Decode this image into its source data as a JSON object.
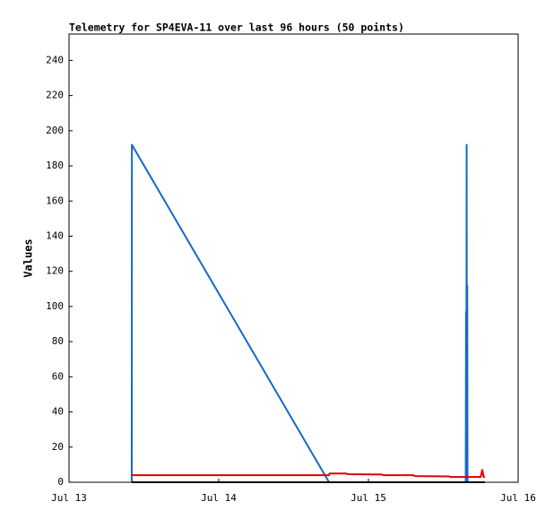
{
  "chart_data": {
    "type": "line",
    "title": "Telemetry for SP4EVA-11 over last 96 hours (50 points)",
    "y_label": "Values",
    "xlim": [
      0,
      3
    ],
    "xticks": [
      {
        "value": 0,
        "label": "Jul 13"
      },
      {
        "value": 1,
        "label": "Jul 14"
      },
      {
        "value": 2,
        "label": "Jul 15"
      },
      {
        "value": 3,
        "label": "Jul 16"
      }
    ],
    "ylim": [
      0,
      255
    ],
    "yticks": [
      0,
      20,
      40,
      60,
      80,
      100,
      120,
      140,
      160,
      180,
      200,
      220,
      240
    ],
    "grid": false,
    "series": [
      {
        "color": "#1569c7",
        "x": [
          0.419,
          0.42,
          1.737,
          2.65,
          2.652,
          2.654,
          2.656,
          2.658,
          2.66,
          2.662,
          2.778
        ],
        "values": [
          0,
          192,
          0,
          0,
          97,
          0,
          192,
          0,
          112,
          0,
          0
        ]
      },
      {
        "color": "#e00000",
        "x": [
          0.419,
          1.737,
          1.74,
          1.85,
          1.86,
          2.09,
          2.1,
          2.3,
          2.31,
          2.54,
          2.55,
          2.75,
          2.76,
          2.77,
          2.778
        ],
        "values": [
          4,
          4,
          5,
          5,
          4.6,
          4.4,
          4,
          4,
          3.5,
          3.3,
          3,
          3,
          7,
          3,
          3
        ]
      },
      {
        "color": "#000000",
        "x": [
          0.419,
          2.778
        ],
        "values": [
          0,
          0
        ]
      }
    ]
  }
}
